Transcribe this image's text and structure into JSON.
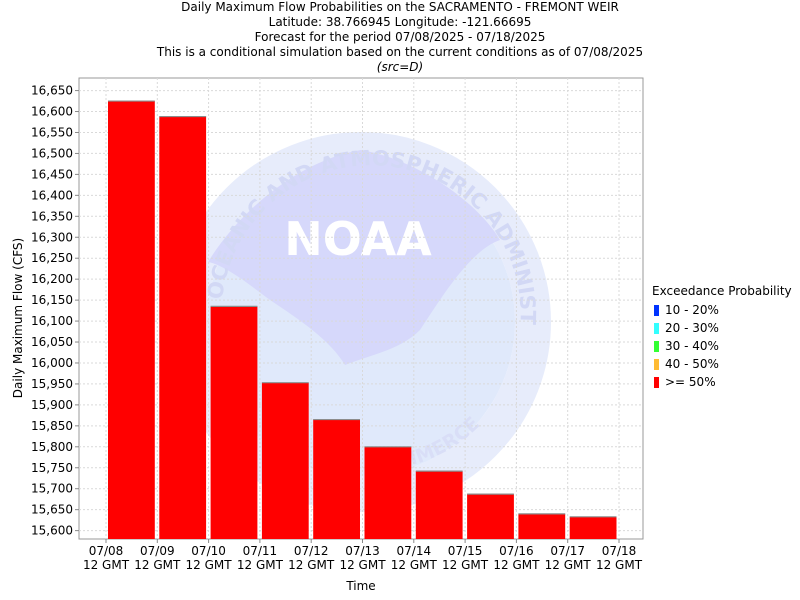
{
  "header": {
    "line1": "Daily Maximum Flow Probabilities on the SACRAMENTO - FREMONT WEIR",
    "line2": "Latitude: 38.766945 Longitude: -121.66695",
    "line3": "Forecast for the period 07/08/2025 - 07/18/2025",
    "line4": "This is a conditional simulation based on the current conditions as of 07/08/2025",
    "line5": "(src=D)"
  },
  "watermark": {
    "logo_text": "NOAA",
    "ring_text_top": "OCEANIC AND ATMOSPHERIC ADMINISTRATION",
    "ring_text_bottom": "COMMERCE"
  },
  "chart_data": {
    "type": "bar",
    "title": "Daily Maximum Flow Probabilities on the SACRAMENTO - FREMONT WEIR",
    "xlabel": "Time",
    "ylabel": "Daily Maximum Flow (CFS)",
    "ylim": [
      15580,
      16680
    ],
    "yticks": [
      15600,
      15650,
      15700,
      15750,
      15800,
      15850,
      15900,
      15950,
      16000,
      16050,
      16100,
      16150,
      16200,
      16250,
      16300,
      16350,
      16400,
      16450,
      16500,
      16550,
      16600,
      16650
    ],
    "ytick_labels": [
      "15,600",
      "15,650",
      "15,700",
      "15,750",
      "15,800",
      "15,850",
      "15,900",
      "15,950",
      "16,000",
      "16,050",
      "16,100",
      "16,150",
      "16,200",
      "16,250",
      "16,300",
      "16,350",
      "16,400",
      "16,450",
      "16,500",
      "16,550",
      "16,600",
      "16,650"
    ],
    "xtick_labels_line1": [
      "07/08",
      "07/09",
      "07/10",
      "07/11",
      "07/12",
      "07/13",
      "07/14",
      "07/15",
      "07/16",
      "07/17",
      "07/18"
    ],
    "xtick_labels_line2": [
      "12 GMT",
      "12 GMT",
      "12 GMT",
      "12 GMT",
      "12 GMT",
      "12 GMT",
      "12 GMT",
      "12 GMT",
      "12 GMT",
      "12 GMT",
      "12 GMT"
    ],
    "categories": [
      "07/08",
      "07/09",
      "07/10",
      "07/11",
      "07/12",
      "07/13",
      "07/14",
      "07/15",
      "07/16",
      "07/17"
    ],
    "series": [
      {
        "name": ">= 50%",
        "color": "#ff0000",
        "values": [
          16625,
          16588,
          16135,
          15953,
          15865,
          15800,
          15742,
          15687,
          15640,
          15633
        ]
      }
    ],
    "grid": true,
    "legend_position": "right",
    "legend": {
      "title": "Exceedance Probability",
      "items": [
        {
          "label": "10 - 20%",
          "color": "#0033ff"
        },
        {
          "label": "20 - 30%",
          "color": "#33ffff"
        },
        {
          "label": "30 - 40%",
          "color": "#33ff33"
        },
        {
          "label": "40 - 50%",
          "color": "#ffbb33"
        },
        {
          "label": ">= 50%",
          "color": "#ff0000"
        }
      ]
    }
  }
}
